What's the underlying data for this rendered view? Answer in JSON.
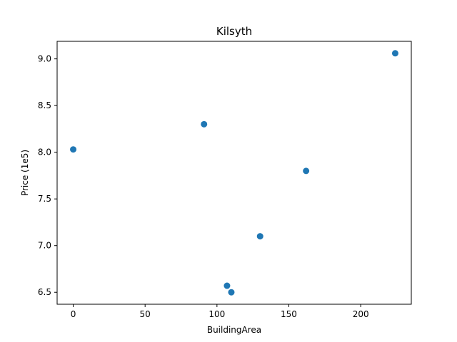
{
  "chart_data": {
    "type": "scatter",
    "title": "Kilsyth",
    "xlabel": "BuildingArea",
    "ylabel": "Price (1e5)",
    "xlim": [
      -11.2,
      235.2
    ],
    "ylim": [
      6.372,
      9.188
    ],
    "xticks": [
      0,
      50,
      100,
      150,
      200
    ],
    "xtick_labels": [
      "0",
      "50",
      "100",
      "150",
      "200"
    ],
    "yticks": [
      6.5,
      7.0,
      7.5,
      8.0,
      8.5,
      9.0
    ],
    "ytick_labels": [
      "6.5",
      "7.0",
      "7.5",
      "8.0",
      "8.5",
      "9.0"
    ],
    "grid": false,
    "marker_color": "#1f77b4",
    "points": [
      {
        "x": 0,
        "y": 8.03
      },
      {
        "x": 91,
        "y": 8.3
      },
      {
        "x": 107,
        "y": 6.57
      },
      {
        "x": 110,
        "y": 6.5
      },
      {
        "x": 130,
        "y": 7.1
      },
      {
        "x": 162,
        "y": 7.8
      },
      {
        "x": 224,
        "y": 9.06
      }
    ]
  }
}
